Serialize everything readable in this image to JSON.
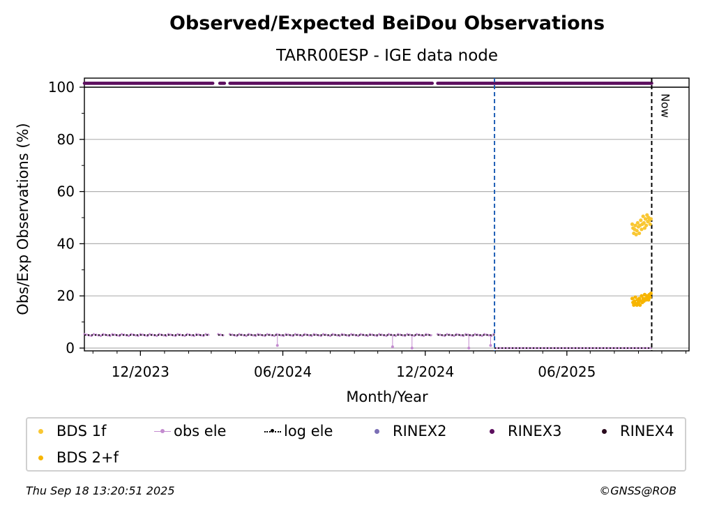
{
  "chart_data": {
    "type": "scatter",
    "title": "Observed/Expected BeiDou Observations",
    "subtitle": "TARR00ESP - IGE data node",
    "xlabel": "Month/Year",
    "ylabel": "Obs/Exp Observations (%)",
    "ylim": [
      0,
      100
    ],
    "yticks": [
      0,
      20,
      40,
      60,
      80,
      100
    ],
    "xticks": [
      "12/2023",
      "06/2024",
      "12/2024",
      "06/2025"
    ],
    "xlim": [
      "2023-09-20",
      "2025-11-05"
    ],
    "grid": "horizontal",
    "now_label": "Now",
    "now_date": "2025-09-18",
    "data_change_date": "2025-02-28",
    "series": [
      {
        "name": "BDS 1f",
        "color": "#f9c733",
        "x": [
          "2025-08-24",
          "2025-08-25",
          "2025-08-26",
          "2025-08-27",
          "2025-08-28",
          "2025-08-29",
          "2025-08-30",
          "2025-08-31",
          "2025-09-01",
          "2025-09-02",
          "2025-09-03",
          "2025-09-04",
          "2025-09-05",
          "2025-09-06",
          "2025-09-07",
          "2025-09-08",
          "2025-09-09",
          "2025-09-10",
          "2025-09-11",
          "2025-09-12",
          "2025-09-13",
          "2025-09-14",
          "2025-09-15",
          "2025-09-16",
          "2025-09-17"
        ],
        "values": [
          47.5,
          46,
          44,
          45.5,
          47,
          43.5,
          45,
          48,
          46.5,
          44,
          47,
          49,
          45.5,
          47.5,
          50.5,
          48,
          46,
          49.5,
          47,
          51,
          48.5,
          50,
          49,
          47.5,
          49.5
        ]
      },
      {
        "name": "BDS 2+f",
        "color": "#f7b500",
        "x": [
          "2025-08-24",
          "2025-08-25",
          "2025-08-26",
          "2025-08-27",
          "2025-08-28",
          "2025-08-29",
          "2025-08-30",
          "2025-08-31",
          "2025-09-01",
          "2025-09-02",
          "2025-09-03",
          "2025-09-04",
          "2025-09-05",
          "2025-09-06",
          "2025-09-07",
          "2025-09-08",
          "2025-09-09",
          "2025-09-10",
          "2025-09-11",
          "2025-09-12",
          "2025-09-13",
          "2025-09-14",
          "2025-09-15",
          "2025-09-16",
          "2025-09-17"
        ],
        "values": [
          19,
          17.5,
          16.5,
          18,
          19.5,
          17,
          16.5,
          18.5,
          17.5,
          19,
          16.5,
          18,
          20,
          17.5,
          19,
          18,
          20.5,
          19,
          18.5,
          20,
          19.5,
          18.5,
          20.5,
          19.5,
          21
        ]
      },
      {
        "name": "obs ele",
        "color": "#c38bcf",
        "segments": [
          [
            "2023-09-20",
            "2024-02-28"
          ],
          [
            "2024-03-10",
            "2024-03-18"
          ],
          [
            "2024-03-25",
            "2024-12-10"
          ],
          [
            "2024-12-17",
            "2025-02-28"
          ]
        ],
        "value": 5,
        "dips": [
          {
            "x": "2024-05-25",
            "value": 1
          },
          {
            "x": "2024-10-20",
            "value": 0.5
          },
          {
            "x": "2024-11-14",
            "value": 0
          },
          {
            "x": "2025-01-26",
            "value": 0
          },
          {
            "x": "2025-02-23",
            "value": 1
          }
        ],
        "after": {
          "from": "2025-02-28",
          "to": "2025-09-18",
          "value": 0
        }
      },
      {
        "name": "log ele",
        "color": "#000000",
        "style": "dotted",
        "segments": [
          [
            "2023-09-20",
            "2024-02-28"
          ],
          [
            "2024-03-10",
            "2024-03-18"
          ],
          [
            "2024-03-25",
            "2024-12-10"
          ],
          [
            "2024-12-17",
            "2025-02-28"
          ]
        ],
        "value": 5,
        "after": {
          "from": "2025-02-28",
          "to": "2025-09-18",
          "value": 0
        }
      },
      {
        "name": "RINEX2",
        "color": "#7b6fb5"
      },
      {
        "name": "RINEX3",
        "color": "#5c0f5e",
        "segments": [
          [
            "2023-09-20",
            "2024-03-03"
          ],
          [
            "2024-03-12",
            "2024-03-18"
          ],
          [
            "2024-03-25",
            "2024-12-10"
          ],
          [
            "2024-12-17",
            "2025-09-18"
          ]
        ],
        "value": 101.5
      },
      {
        "name": "RINEX4",
        "color": "#2a0a1e"
      }
    ]
  },
  "legend": [
    {
      "label": "BDS 1f",
      "type": "dot",
      "color": "#f9c733"
    },
    {
      "label": "obs ele",
      "type": "line-dot",
      "color": "#c38bcf"
    },
    {
      "label": "log ele",
      "type": "dotted-dot",
      "color": "#000000"
    },
    {
      "label": "RINEX2",
      "type": "dot",
      "color": "#7b6fb5"
    },
    {
      "label": "RINEX3",
      "type": "dot",
      "color": "#5c0f5e"
    },
    {
      "label": "RINEX4",
      "type": "dot",
      "color": "#2a0a1e"
    },
    {
      "label": "BDS 2+f",
      "type": "dot",
      "color": "#f7b500"
    }
  ],
  "footer": {
    "timestamp": "Thu Sep 18 13:20:51 2025",
    "copyright": "©GNSS@ROB"
  }
}
